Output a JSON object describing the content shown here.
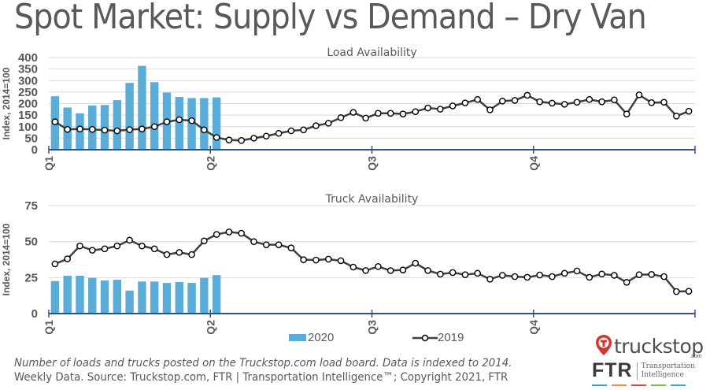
{
  "title": "Spot Market: Supply vs Demand – Dry Van",
  "colors": {
    "bar_2020": "#5aacd9",
    "line_2019": "#404040",
    "axis": "#2f528f",
    "grid": "#d9d9d9",
    "text": "#595959"
  },
  "legend": {
    "series_2020": "2020",
    "series_2019": "2019"
  },
  "footer": {
    "line1": "Number of loads and trucks posted on the Truckstop.com load board. Data is indexed to 2014.",
    "line2": "Weekly Data. Source: Truckstop.com, FTR | Transportation Intelligence™; Copyright 2021, FTR"
  },
  "logos": {
    "truckstop_word": "truckstop",
    "truckstop_suffix": ".com",
    "ftr_word": "FTR",
    "ftr_tagline_1": "Transportation",
    "ftr_tagline_2": "Intelligence",
    "ftr_dash_colors": [
      "#3ea0d8",
      "#f08a3c",
      "#e0413b",
      "#6cc04a",
      "#3ea0d8"
    ]
  },
  "chart_data": [
    {
      "type": "bar+line",
      "title": "Load Availability",
      "ylabel": "Index, 2014=100",
      "xlabel": "",
      "ylim": [
        0,
        400
      ],
      "yticks": [
        0,
        50,
        100,
        150,
        200,
        250,
        300,
        350,
        400
      ],
      "grid": true,
      "x_unit": "week",
      "weeks_total": 52,
      "quarter_labels": [
        "Q1",
        "Q2",
        "Q3",
        "Q4"
      ],
      "series": [
        {
          "name": "2020",
          "kind": "bar",
          "values": [
            232,
            183,
            158,
            192,
            194,
            215,
            290,
            364,
            293,
            248,
            229,
            224,
            224,
            227
          ]
        },
        {
          "name": "2019",
          "kind": "line",
          "values": [
            121,
            88,
            90,
            88,
            85,
            82,
            87,
            90,
            100,
            121,
            130,
            126,
            86,
            53,
            42,
            40,
            50,
            59,
            71,
            82,
            86,
            104,
            115,
            139,
            162,
            137,
            158,
            158,
            155,
            165,
            181,
            176,
            190,
            203,
            218,
            173,
            211,
            214,
            236,
            208,
            202,
            197,
            206,
            218,
            208,
            216,
            155,
            238,
            204,
            206,
            146,
            167
          ]
        }
      ]
    },
    {
      "type": "bar+line",
      "title": "Truck Availability",
      "ylabel": "Index, 2014=100",
      "xlabel": "",
      "ylim": [
        0,
        75
      ],
      "yticks": [
        0,
        25,
        50,
        75
      ],
      "grid": true,
      "x_unit": "week",
      "weeks_total": 52,
      "quarter_labels": [
        "Q1",
        "Q2",
        "Q3",
        "Q4"
      ],
      "series": [
        {
          "name": "2020",
          "kind": "bar",
          "values": [
            22.6,
            26.3,
            26.3,
            24.8,
            23,
            23.5,
            16,
            22.3,
            22.3,
            21.3,
            21.9,
            21.3,
            24.8,
            26.7
          ]
        },
        {
          "name": "2019",
          "kind": "line",
          "values": [
            34.5,
            38,
            47,
            44,
            45,
            47,
            51,
            47,
            45,
            41,
            42.5,
            41,
            50.5,
            55,
            56.7,
            55.8,
            50,
            47.8,
            47.8,
            45.6,
            37.4,
            37.2,
            37.8,
            36.7,
            32.3,
            29.9,
            32.7,
            29.9,
            30.3,
            35,
            29.9,
            27.4,
            28.5,
            27,
            28,
            23.9,
            26.6,
            25.7,
            25.2,
            26.8,
            25.7,
            28,
            29.6,
            25.2,
            27.5,
            26.6,
            21.7,
            27,
            27.2,
            25.7,
            15.3,
            15.5
          ]
        }
      ]
    }
  ]
}
